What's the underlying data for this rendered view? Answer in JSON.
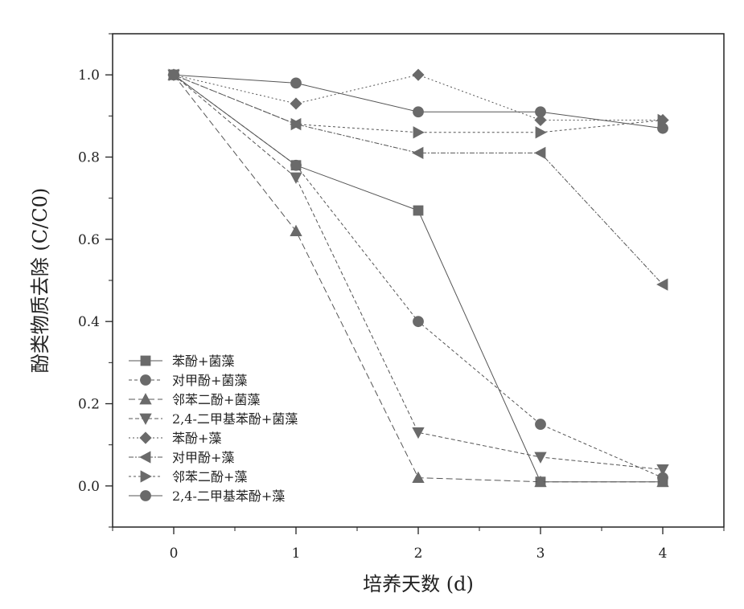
{
  "chart_data": {
    "type": "line",
    "title": "",
    "xlabel": "培养天数 (d)",
    "ylabel": "酚类物质去除 (C/C0)",
    "xlim": [
      -0.5,
      4.5
    ],
    "ylim": [
      -0.1,
      1.1
    ],
    "x": [
      0,
      1,
      2,
      3,
      4
    ],
    "xticks": [
      "0",
      "1",
      "2",
      "3",
      "4"
    ],
    "yticks": [
      "0.0",
      "0.2",
      "0.4",
      "0.6",
      "0.8",
      "1.0"
    ],
    "grid": false,
    "legend_position": "bottom-left",
    "series": [
      {
        "name": "苯酚+菌藻",
        "marker": "square",
        "values": [
          1.0,
          0.78,
          0.67,
          0.01,
          0.01
        ]
      },
      {
        "name": "对甲酚+菌藻",
        "marker": "circle",
        "values": [
          1.0,
          0.78,
          0.4,
          0.15,
          0.02
        ]
      },
      {
        "name": "邻苯二酚+菌藻",
        "marker": "triangle-up",
        "values": [
          1.0,
          0.62,
          0.02,
          0.01,
          0.01
        ]
      },
      {
        "name": "2,4-二甲基苯酚+菌藻",
        "marker": "triangle-down",
        "values": [
          1.0,
          0.75,
          0.13,
          0.07,
          0.04
        ]
      },
      {
        "name": "苯酚+藻",
        "marker": "diamond",
        "values": [
          1.0,
          0.93,
          1.0,
          0.89,
          0.89
        ]
      },
      {
        "name": "对甲酚+藻",
        "marker": "triangle-left",
        "values": [
          1.0,
          0.88,
          0.81,
          0.81,
          0.49
        ]
      },
      {
        "name": "邻苯二酚+藻",
        "marker": "triangle-right",
        "values": [
          1.0,
          0.88,
          0.86,
          0.86,
          0.89
        ]
      },
      {
        "name": "2,4-二甲基苯酚+藻",
        "marker": "circle",
        "values": [
          1.0,
          0.98,
          0.91,
          0.91,
          0.87
        ]
      }
    ]
  },
  "colors": {
    "line": "#555555",
    "marker": "#6a6a6a",
    "axis": "#222222",
    "background": "#ffffff"
  }
}
